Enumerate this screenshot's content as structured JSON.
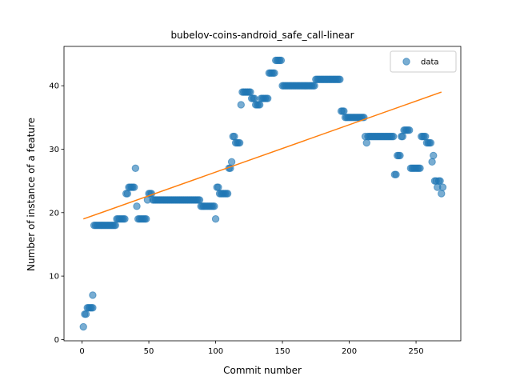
{
  "chart_data": {
    "type": "scatter",
    "title": "bubelov-coins-android_safe_call-linear",
    "xlabel": "Commit number",
    "ylabel": "Number of instance of a feature",
    "xlim": [
      -13.5,
      283.5
    ],
    "ylim": [
      -0.2,
      46.2
    ],
    "xticks": [
      0,
      50,
      100,
      150,
      200,
      250
    ],
    "yticks": [
      0,
      10,
      20,
      30,
      40
    ],
    "legend": {
      "placement": "top-right",
      "entries": [
        "data"
      ]
    },
    "colors": {
      "data": "#1f77b4",
      "fit": "#ff7f0e"
    },
    "series": [
      {
        "name": "data",
        "kind": "scatter",
        "points": [
          [
            1,
            2
          ],
          [
            2,
            4
          ],
          [
            3,
            4
          ],
          [
            4,
            5
          ],
          [
            5,
            5
          ],
          [
            6,
            5
          ],
          [
            7,
            5
          ],
          [
            8,
            7
          ],
          [
            8,
            5
          ],
          [
            9,
            18
          ],
          [
            10,
            18
          ],
          [
            11,
            18
          ],
          [
            12,
            18
          ],
          [
            13,
            18
          ],
          [
            14,
            18
          ],
          [
            15,
            18
          ],
          [
            16,
            18
          ],
          [
            17,
            18
          ],
          [
            18,
            18
          ],
          [
            19,
            18
          ],
          [
            20,
            18
          ],
          [
            21,
            18
          ],
          [
            22,
            18
          ],
          [
            23,
            18
          ],
          [
            24,
            18
          ],
          [
            25,
            18
          ],
          [
            26,
            19
          ],
          [
            27,
            19
          ],
          [
            28,
            19
          ],
          [
            29,
            19
          ],
          [
            30,
            19
          ],
          [
            31,
            19
          ],
          [
            32,
            19
          ],
          [
            33,
            23
          ],
          [
            34,
            23
          ],
          [
            35,
            24
          ],
          [
            36,
            24
          ],
          [
            37,
            24
          ],
          [
            38,
            24
          ],
          [
            39,
            24
          ],
          [
            40,
            27
          ],
          [
            41,
            21
          ],
          [
            42,
            19
          ],
          [
            43,
            19
          ],
          [
            44,
            19
          ],
          [
            45,
            19
          ],
          [
            46,
            19
          ],
          [
            47,
            19
          ],
          [
            48,
            19
          ],
          [
            49,
            22
          ],
          [
            50,
            23
          ],
          [
            51,
            23
          ],
          [
            52,
            23
          ],
          [
            53,
            22
          ],
          [
            54,
            22
          ],
          [
            55,
            22
          ],
          [
            56,
            22
          ],
          [
            57,
            22
          ],
          [
            58,
            22
          ],
          [
            59,
            22
          ],
          [
            60,
            22
          ],
          [
            61,
            22
          ],
          [
            62,
            22
          ],
          [
            63,
            22
          ],
          [
            64,
            22
          ],
          [
            65,
            22
          ],
          [
            66,
            22
          ],
          [
            67,
            22
          ],
          [
            68,
            22
          ],
          [
            69,
            22
          ],
          [
            70,
            22
          ],
          [
            71,
            22
          ],
          [
            72,
            22
          ],
          [
            73,
            22
          ],
          [
            74,
            22
          ],
          [
            75,
            22
          ],
          [
            76,
            22
          ],
          [
            77,
            22
          ],
          [
            78,
            22
          ],
          [
            79,
            22
          ],
          [
            80,
            22
          ],
          [
            81,
            22
          ],
          [
            82,
            22
          ],
          [
            83,
            22
          ],
          [
            84,
            22
          ],
          [
            85,
            22
          ],
          [
            86,
            22
          ],
          [
            87,
            22
          ],
          [
            88,
            22
          ],
          [
            89,
            21
          ],
          [
            90,
            21
          ],
          [
            91,
            21
          ],
          [
            92,
            21
          ],
          [
            93,
            21
          ],
          [
            94,
            21
          ],
          [
            95,
            21
          ],
          [
            96,
            21
          ],
          [
            97,
            21
          ],
          [
            98,
            21
          ],
          [
            99,
            21
          ],
          [
            100,
            19
          ],
          [
            101,
            24
          ],
          [
            102,
            24
          ],
          [
            103,
            23
          ],
          [
            104,
            23
          ],
          [
            105,
            23
          ],
          [
            106,
            23
          ],
          [
            107,
            23
          ],
          [
            108,
            23
          ],
          [
            109,
            23
          ],
          [
            110,
            27
          ],
          [
            111,
            27
          ],
          [
            112,
            28
          ],
          [
            113,
            32
          ],
          [
            114,
            32
          ],
          [
            115,
            31
          ],
          [
            116,
            31
          ],
          [
            117,
            31
          ],
          [
            118,
            31
          ],
          [
            119,
            37
          ],
          [
            120,
            39
          ],
          [
            121,
            39
          ],
          [
            122,
            39
          ],
          [
            123,
            39
          ],
          [
            124,
            39
          ],
          [
            125,
            39
          ],
          [
            126,
            39
          ],
          [
            127,
            38
          ],
          [
            128,
            38
          ],
          [
            129,
            38
          ],
          [
            130,
            37
          ],
          [
            131,
            37
          ],
          [
            132,
            37
          ],
          [
            133,
            37
          ],
          [
            134,
            38
          ],
          [
            135,
            38
          ],
          [
            136,
            38
          ],
          [
            137,
            38
          ],
          [
            138,
            38
          ],
          [
            139,
            38
          ],
          [
            140,
            42
          ],
          [
            141,
            42
          ],
          [
            142,
            42
          ],
          [
            143,
            42
          ],
          [
            144,
            42
          ],
          [
            145,
            44
          ],
          [
            146,
            44
          ],
          [
            147,
            44
          ],
          [
            148,
            44
          ],
          [
            149,
            44
          ],
          [
            150,
            40
          ],
          [
            151,
            40
          ],
          [
            152,
            40
          ],
          [
            153,
            40
          ],
          [
            154,
            40
          ],
          [
            155,
            40
          ],
          [
            156,
            40
          ],
          [
            157,
            40
          ],
          [
            158,
            40
          ],
          [
            159,
            40
          ],
          [
            160,
            40
          ],
          [
            161,
            40
          ],
          [
            162,
            40
          ],
          [
            163,
            40
          ],
          [
            164,
            40
          ],
          [
            165,
            40
          ],
          [
            166,
            40
          ],
          [
            167,
            40
          ],
          [
            168,
            40
          ],
          [
            169,
            40
          ],
          [
            170,
            40
          ],
          [
            171,
            40
          ],
          [
            172,
            40
          ],
          [
            173,
            40
          ],
          [
            174,
            40
          ],
          [
            175,
            41
          ],
          [
            176,
            41
          ],
          [
            177,
            41
          ],
          [
            178,
            41
          ],
          [
            179,
            41
          ],
          [
            180,
            41
          ],
          [
            181,
            41
          ],
          [
            182,
            41
          ],
          [
            183,
            41
          ],
          [
            184,
            41
          ],
          [
            185,
            41
          ],
          [
            186,
            41
          ],
          [
            187,
            41
          ],
          [
            188,
            41
          ],
          [
            189,
            41
          ],
          [
            190,
            41
          ],
          [
            191,
            41
          ],
          [
            192,
            41
          ],
          [
            193,
            41
          ],
          [
            194,
            36
          ],
          [
            195,
            36
          ],
          [
            196,
            36
          ],
          [
            197,
            35
          ],
          [
            198,
            35
          ],
          [
            199,
            35
          ],
          [
            200,
            35
          ],
          [
            201,
            35
          ],
          [
            202,
            35
          ],
          [
            203,
            35
          ],
          [
            204,
            35
          ],
          [
            205,
            35
          ],
          [
            206,
            35
          ],
          [
            207,
            35
          ],
          [
            208,
            35
          ],
          [
            209,
            35
          ],
          [
            210,
            35
          ],
          [
            211,
            35
          ],
          [
            212,
            32
          ],
          [
            213,
            31
          ],
          [
            214,
            32
          ],
          [
            215,
            32
          ],
          [
            216,
            32
          ],
          [
            217,
            32
          ],
          [
            218,
            32
          ],
          [
            219,
            32
          ],
          [
            220,
            32
          ],
          [
            221,
            32
          ],
          [
            222,
            32
          ],
          [
            223,
            32
          ],
          [
            224,
            32
          ],
          [
            225,
            32
          ],
          [
            226,
            32
          ],
          [
            227,
            32
          ],
          [
            228,
            32
          ],
          [
            229,
            32
          ],
          [
            230,
            32
          ],
          [
            231,
            32
          ],
          [
            232,
            32
          ],
          [
            233,
            32
          ],
          [
            234,
            26
          ],
          [
            235,
            26
          ],
          [
            236,
            29
          ],
          [
            237,
            29
          ],
          [
            238,
            29
          ],
          [
            239,
            32
          ],
          [
            240,
            32
          ],
          [
            241,
            33
          ],
          [
            242,
            33
          ],
          [
            243,
            33
          ],
          [
            244,
            33
          ],
          [
            245,
            33
          ],
          [
            246,
            27
          ],
          [
            247,
            27
          ],
          [
            248,
            27
          ],
          [
            249,
            27
          ],
          [
            250,
            27
          ],
          [
            251,
            27
          ],
          [
            252,
            27
          ],
          [
            253,
            27
          ],
          [
            254,
            32
          ],
          [
            255,
            32
          ],
          [
            256,
            32
          ],
          [
            257,
            32
          ],
          [
            258,
            31
          ],
          [
            259,
            31
          ],
          [
            260,
            31
          ],
          [
            261,
            31
          ],
          [
            262,
            28
          ],
          [
            263,
            29
          ],
          [
            264,
            25
          ],
          [
            265,
            25
          ],
          [
            266,
            24
          ],
          [
            267,
            25
          ],
          [
            268,
            25
          ],
          [
            269,
            23
          ],
          [
            270,
            24
          ]
        ]
      },
      {
        "kind": "line",
        "points": [
          [
            1,
            19
          ],
          [
            269,
            39
          ]
        ]
      }
    ]
  }
}
